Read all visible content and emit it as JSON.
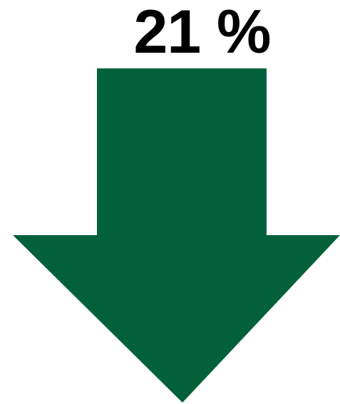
{
  "indicator": {
    "value_text": "21 %",
    "direction": "down",
    "arrow_icon": "down-arrow-icon",
    "arrow_color": "#02613a"
  }
}
